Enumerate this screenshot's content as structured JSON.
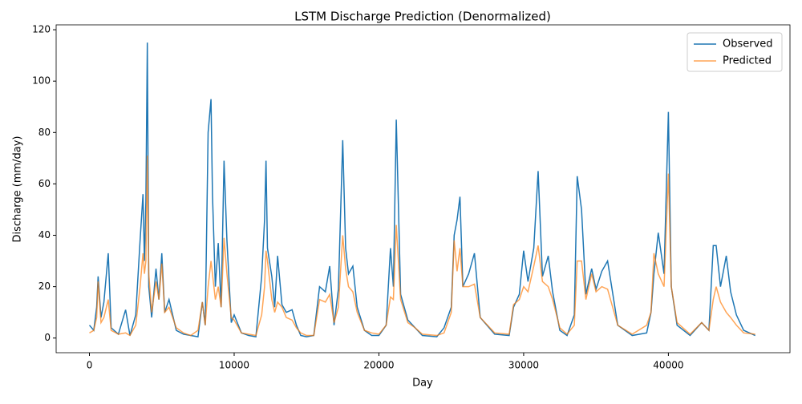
{
  "chart_data": {
    "type": "line",
    "title": "LSTM Discharge Prediction (Denormalized)",
    "x_label": "Day",
    "y_label": "Discharge (mm/day)",
    "x": [
      0,
      300,
      500,
      600,
      800,
      1000,
      1300,
      1500,
      2000,
      2500,
      2800,
      3200,
      3500,
      3700,
      3800,
      3900,
      4000,
      4100,
      4300,
      4600,
      4800,
      5000,
      5200,
      5500,
      6000,
      6500,
      7000,
      7500,
      7800,
      8000,
      8200,
      8400,
      8500,
      8700,
      8900,
      9100,
      9300,
      9500,
      9800,
      10000,
      10500,
      11000,
      11500,
      11900,
      12100,
      12200,
      12300,
      12600,
      12800,
      13000,
      13300,
      13600,
      14000,
      14300,
      14600,
      15000,
      15500,
      15900,
      16300,
      16600,
      16900,
      17200,
      17500,
      17700,
      17900,
      18200,
      18500,
      19000,
      19500,
      20000,
      20500,
      20800,
      21000,
      21200,
      21500,
      22000,
      22500,
      23000,
      24000,
      24500,
      25000,
      25200,
      25400,
      25600,
      25800,
      26200,
      26600,
      27000,
      28000,
      29000,
      29300,
      29700,
      30000,
      30300,
      30700,
      31000,
      31300,
      31700,
      32000,
      32500,
      33000,
      33500,
      33700,
      34000,
      34300,
      34700,
      35000,
      35400,
      35800,
      36500,
      37500,
      38500,
      38800,
      39000,
      39300,
      39700,
      40000,
      40200,
      40600,
      41500,
      42300,
      42800,
      43100,
      43300,
      43600,
      44000,
      44300,
      44700,
      45200,
      46000
    ],
    "series": [
      {
        "name": "Observed",
        "color": "#1f77b4",
        "opacity": 1,
        "values": [
          5,
          3,
          12,
          24,
          8,
          14,
          33,
          4,
          1.5,
          11,
          1,
          9,
          38,
          56,
          30,
          53,
          115,
          20,
          8,
          27,
          15,
          33,
          10,
          15,
          3,
          1.5,
          1,
          0.5,
          14,
          5,
          80,
          93,
          56,
          20,
          37,
          12,
          69,
          38,
          6,
          9,
          2,
          1,
          0.5,
          24,
          46,
          69,
          35,
          24,
          12,
          32,
          13,
          10,
          11,
          5,
          1,
          0.5,
          1,
          20,
          18,
          28,
          5,
          19,
          77,
          35,
          25,
          28,
          12,
          3,
          1,
          1,
          5,
          35,
          20,
          85,
          17,
          7,
          4,
          1,
          0.5,
          4,
          12,
          40,
          46,
          55,
          20,
          25,
          33,
          8,
          1.5,
          1,
          12,
          17,
          34,
          22,
          35,
          65,
          24,
          32,
          18,
          3,
          1,
          9,
          63,
          50,
          17,
          27,
          19,
          26,
          30,
          5,
          1,
          2,
          10,
          25,
          41,
          25,
          88,
          20,
          5,
          1,
          6,
          3,
          36,
          36,
          20,
          32,
          18,
          9,
          3,
          1
        ]
      },
      {
        "name": "Predicted",
        "color": "#ff7f0e",
        "opacity": 0.7,
        "values": [
          2,
          3,
          8,
          22,
          6,
          8,
          15,
          3,
          1.5,
          2,
          1,
          5,
          20,
          33,
          25,
          30,
          71,
          25,
          10,
          22,
          15,
          29,
          10,
          12,
          4,
          2,
          1,
          3,
          14,
          5,
          20,
          30,
          25,
          15,
          20,
          12,
          39,
          25,
          8,
          7,
          2,
          1.5,
          1,
          9,
          20,
          34,
          30,
          15,
          10,
          14,
          12,
          8,
          7,
          4,
          2,
          1,
          1,
          15,
          14,
          17,
          6,
          12,
          40,
          27,
          20,
          18,
          10,
          3,
          2,
          1.5,
          5,
          16,
          15,
          44,
          15,
          6,
          4,
          1.5,
          1,
          2,
          10,
          38,
          26,
          35,
          20,
          20,
          21,
          8,
          2,
          1.5,
          13,
          15,
          20,
          18,
          28,
          36,
          22,
          20,
          15,
          4,
          1.5,
          5,
          30,
          30,
          15,
          25,
          18,
          20,
          19,
          5,
          1.5,
          5,
          10,
          33,
          25,
          20,
          64,
          20,
          6,
          1.5,
          6,
          3,
          15,
          20,
          14,
          10,
          8,
          5,
          2,
          1.5
        ]
      }
    ],
    "xlim": [
      -2300,
      48400
    ],
    "ylim": [
      -5.7,
      121.9
    ],
    "xticks": [
      0,
      10000,
      20000,
      30000,
      40000
    ],
    "yticks": [
      0,
      20,
      40,
      60,
      80,
      100,
      120
    ],
    "legend": "upper right"
  }
}
